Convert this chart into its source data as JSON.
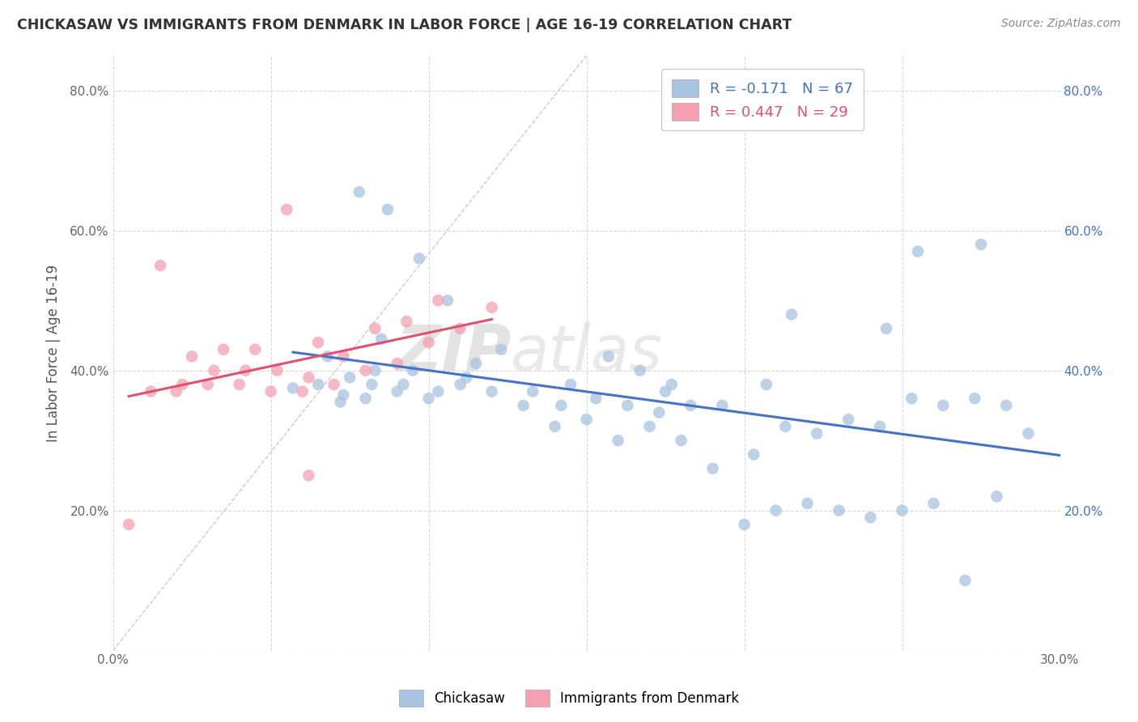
{
  "title": "CHICKASAW VS IMMIGRANTS FROM DENMARK IN LABOR FORCE | AGE 16-19 CORRELATION CHART",
  "source_text": "Source: ZipAtlas.com",
  "ylabel": "In Labor Force | Age 16-19",
  "xlim": [
    0.0,
    0.3
  ],
  "ylim": [
    0.0,
    0.85
  ],
  "x_ticks": [
    0.0,
    0.05,
    0.1,
    0.15,
    0.2,
    0.25,
    0.3
  ],
  "y_ticks": [
    0.0,
    0.2,
    0.4,
    0.6,
    0.8
  ],
  "background_color": "#ffffff",
  "grid_color": "#d8d8d8",
  "chickasaw_color": "#a8c4e0",
  "denmark_color": "#f4a0b0",
  "trend1_color": "#4472c4",
  "trend2_color": "#e05070",
  "legend_r1": "-0.171",
  "legend_n1": "67",
  "legend_r2": "0.447",
  "legend_n2": "29",
  "chickasaw_x": [
    0.057,
    0.065,
    0.068,
    0.072,
    0.073,
    0.075,
    0.078,
    0.08,
    0.082,
    0.083,
    0.085,
    0.087,
    0.09,
    0.092,
    0.095,
    0.097,
    0.1,
    0.103,
    0.106,
    0.11,
    0.112,
    0.115,
    0.12,
    0.123,
    0.13,
    0.133,
    0.14,
    0.142,
    0.145,
    0.15,
    0.153,
    0.157,
    0.16,
    0.163,
    0.167,
    0.17,
    0.173,
    0.177,
    0.18,
    0.183,
    0.19,
    0.193,
    0.2,
    0.203,
    0.207,
    0.21,
    0.213,
    0.22,
    0.223,
    0.23,
    0.233,
    0.24,
    0.243,
    0.25,
    0.253,
    0.26,
    0.263,
    0.27,
    0.273,
    0.28,
    0.283,
    0.175,
    0.215,
    0.245,
    0.255,
    0.275,
    0.29
  ],
  "chickasaw_y": [
    0.375,
    0.38,
    0.42,
    0.355,
    0.365,
    0.39,
    0.655,
    0.36,
    0.38,
    0.4,
    0.445,
    0.63,
    0.37,
    0.38,
    0.4,
    0.56,
    0.36,
    0.37,
    0.5,
    0.38,
    0.39,
    0.41,
    0.37,
    0.43,
    0.35,
    0.37,
    0.32,
    0.35,
    0.38,
    0.33,
    0.36,
    0.42,
    0.3,
    0.35,
    0.4,
    0.32,
    0.34,
    0.38,
    0.3,
    0.35,
    0.26,
    0.35,
    0.18,
    0.28,
    0.38,
    0.2,
    0.32,
    0.21,
    0.31,
    0.2,
    0.33,
    0.19,
    0.32,
    0.2,
    0.36,
    0.21,
    0.35,
    0.1,
    0.36,
    0.22,
    0.35,
    0.37,
    0.48,
    0.46,
    0.57,
    0.58,
    0.31
  ],
  "denmark_x": [
    0.005,
    0.012,
    0.015,
    0.02,
    0.022,
    0.025,
    0.03,
    0.032,
    0.035,
    0.04,
    0.042,
    0.045,
    0.05,
    0.052,
    0.055,
    0.06,
    0.062,
    0.065,
    0.07,
    0.073,
    0.08,
    0.083,
    0.09,
    0.093,
    0.1,
    0.103,
    0.11,
    0.12,
    0.062
  ],
  "denmark_y": [
    0.18,
    0.37,
    0.55,
    0.37,
    0.38,
    0.42,
    0.38,
    0.4,
    0.43,
    0.38,
    0.4,
    0.43,
    0.37,
    0.4,
    0.63,
    0.37,
    0.39,
    0.44,
    0.38,
    0.42,
    0.4,
    0.46,
    0.41,
    0.47,
    0.44,
    0.5,
    0.46,
    0.49,
    0.25
  ]
}
